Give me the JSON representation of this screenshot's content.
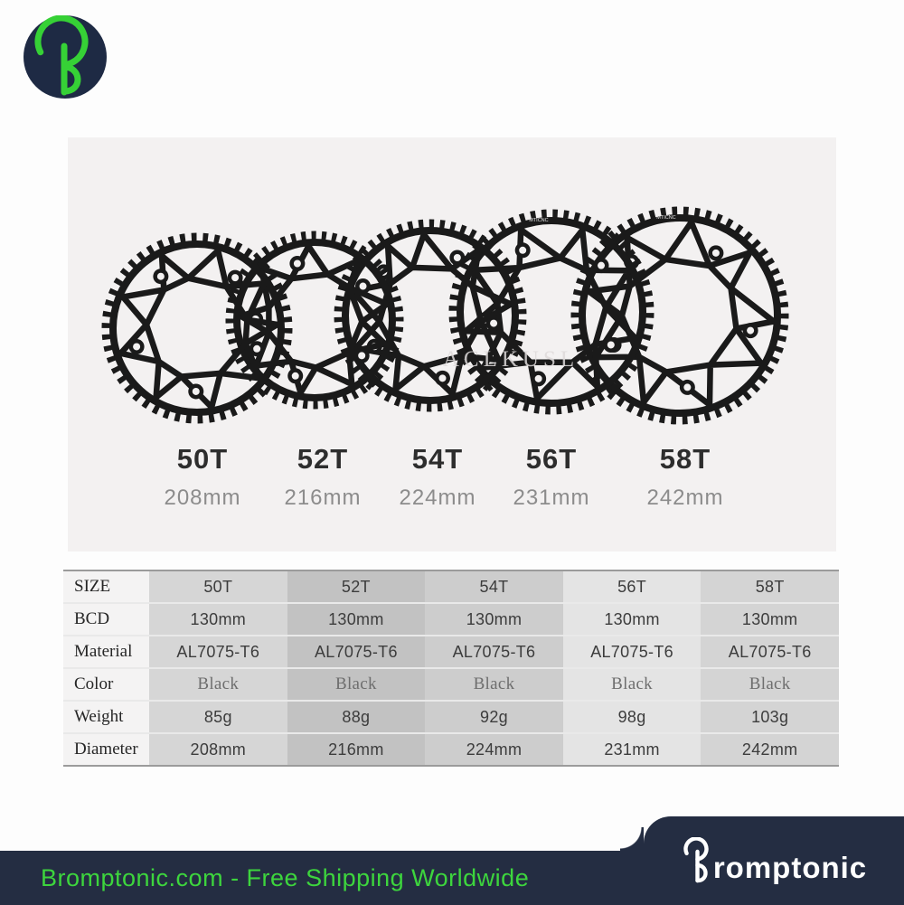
{
  "logo": {
    "icon": "bromptonic-b-icon",
    "navy": "#1e2a44",
    "green": "#36d136"
  },
  "product_panel": {
    "background": "#f3f1f1",
    "watermark": "ACLKUSL",
    "engraving": "MTICNC",
    "chainrings": [
      {
        "size_label": "50T",
        "diameter_label": "208mm",
        "teeth": 50
      },
      {
        "size_label": "52T",
        "diameter_label": "216mm",
        "teeth": 52
      },
      {
        "size_label": "54T",
        "diameter_label": "224mm",
        "teeth": 54
      },
      {
        "size_label": "56T",
        "diameter_label": "231mm",
        "teeth": 56
      },
      {
        "size_label": "58T",
        "diameter_label": "242mm",
        "teeth": 58
      }
    ]
  },
  "spec_table": {
    "rows": [
      {
        "label": "SIZE",
        "values": [
          "50T",
          "52T",
          "54T",
          "56T",
          "58T"
        ]
      },
      {
        "label": "BCD",
        "values": [
          "130mm",
          "130mm",
          "130mm",
          "130mm",
          "130mm"
        ]
      },
      {
        "label": "Material",
        "values": [
          "AL7075-T6",
          "AL7075-T6",
          "AL7075-T6",
          "AL7075-T6",
          "AL7075-T6"
        ]
      },
      {
        "label": "Color",
        "values": [
          "Black",
          "Black",
          "Black",
          "Black",
          "Black"
        ]
      },
      {
        "label": "Weight",
        "values": [
          "85g",
          "88g",
          "92g",
          "98g",
          "103g"
        ]
      },
      {
        "label": "Diameter",
        "values": [
          "208mm",
          "216mm",
          "224mm",
          "231mm",
          "242mm"
        ]
      }
    ],
    "column_colors": [
      "#d6d6d6",
      "#c2c2c2",
      "#cdcdcd",
      "#e4e4e4",
      "#d4d4d4"
    ],
    "label_column_color": "#f4f3f3",
    "border_color": "#9b9b9b"
  },
  "footer": {
    "tagline": "Bromptonic.com - Free Shipping Worldwide",
    "brand_name": "Bromptonic",
    "bar_color": "#242d42",
    "accent_green": "#3dd53d"
  }
}
